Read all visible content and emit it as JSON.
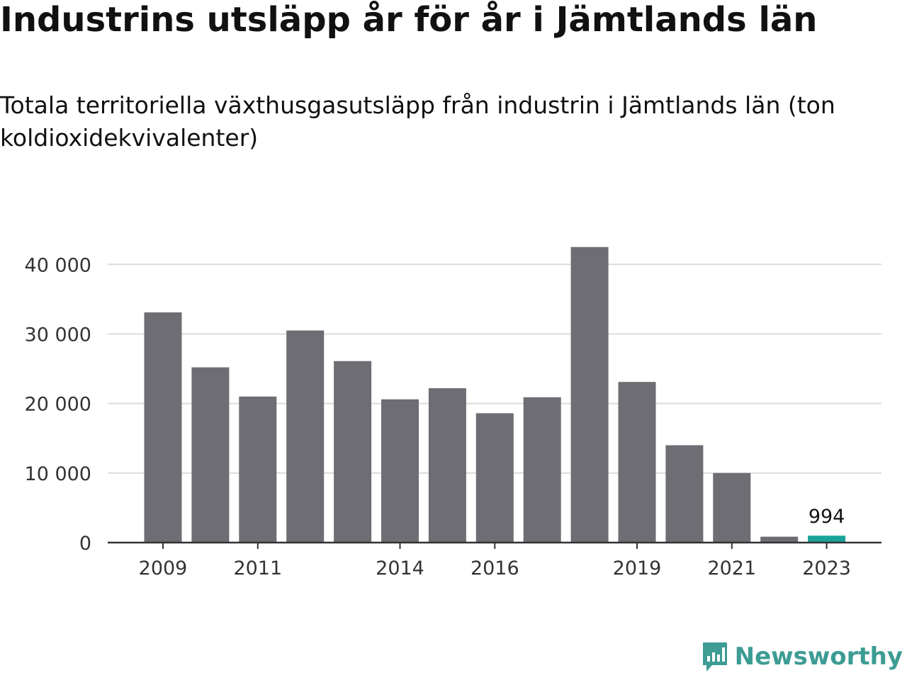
{
  "title": "Industrins utsläpp år för år i Jämtlands län",
  "subtitle": "Totala territoriella växthusgasutsläpp från industrin i Jämtlands län (ton koldioxidekvivalenter)",
  "brand": {
    "name": "Newsworthy",
    "icon": "newsworthy-logo-icon",
    "color": "#3d9c94"
  },
  "chart_data": {
    "type": "bar",
    "categories": [
      "2009",
      "2010",
      "2011",
      "2012",
      "2013",
      "2014",
      "2015",
      "2016",
      "2017",
      "2018",
      "2019",
      "2020",
      "2021",
      "2022",
      "2023"
    ],
    "values": [
      33100,
      25200,
      21000,
      30500,
      26100,
      20600,
      22200,
      18600,
      20900,
      42500,
      23100,
      14000,
      10000,
      850,
      994
    ],
    "x_tick_labels": [
      "2009",
      "2011",
      "2014",
      "2016",
      "2019",
      "2021",
      "2023"
    ],
    "y_ticks": [
      0,
      10000,
      20000,
      30000,
      40000
    ],
    "y_tick_labels": [
      "0",
      "10 000",
      "20 000",
      "30 000",
      "40 000"
    ],
    "ylim": [
      0,
      44000
    ],
    "grid": true,
    "bar_color": "#6e6d73",
    "highlight_color": "#1ba39a",
    "highlight_category": "2023",
    "highlight_label": "994"
  }
}
